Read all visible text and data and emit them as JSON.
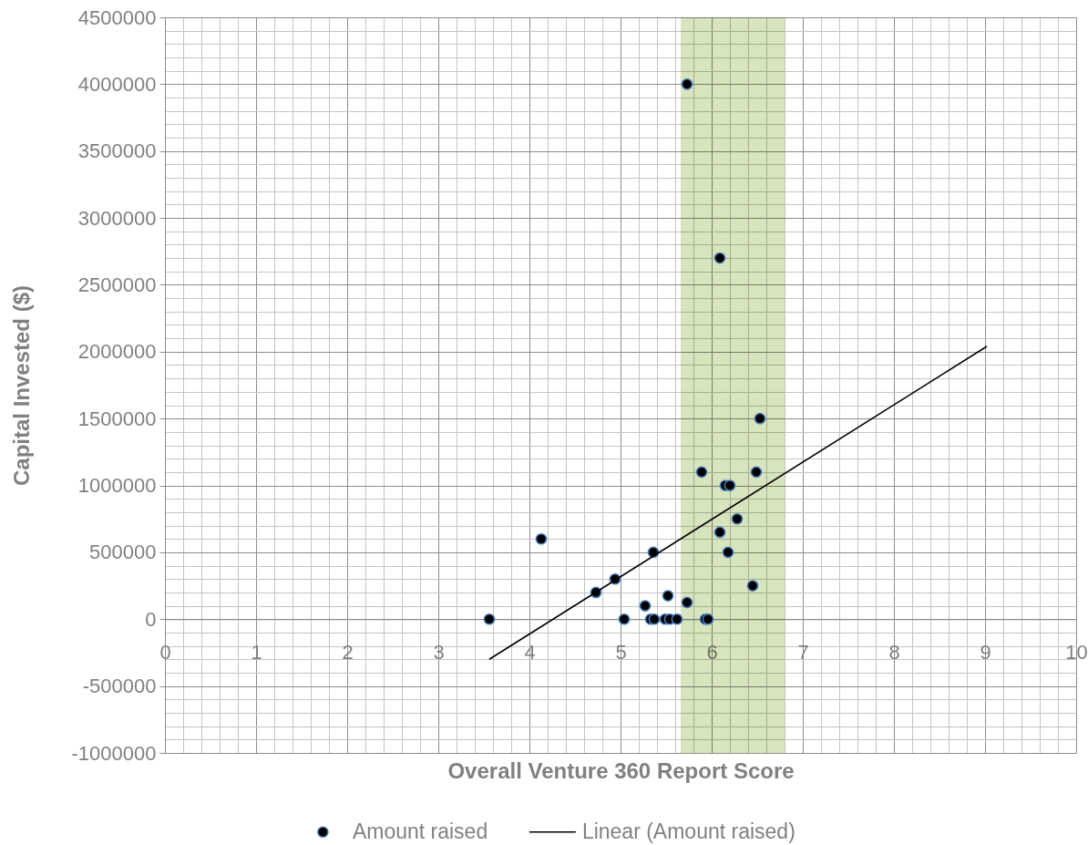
{
  "chart_data": {
    "type": "scatter",
    "xlabel": "Overall Venture 360 Report Score",
    "ylabel": "Capital Invested ($)",
    "xlim": [
      0,
      10
    ],
    "ylim": [
      -1000000,
      4500000
    ],
    "xticks": [
      0,
      {
        "value": 0.2,
        "label": null
      },
      {
        "value": 0.4,
        "label": null
      },
      {
        "value": 0.6,
        "label": null
      },
      {
        "value": 0.8,
        "label": null
      },
      1,
      {
        "value": 1.2,
        "label": null
      },
      {
        "value": 1.4,
        "label": null
      },
      {
        "value": 1.6,
        "label": null
      },
      {
        "value": 1.8,
        "label": null
      },
      2,
      {
        "value": 2.2,
        "label": null
      },
      {
        "value": 2.4,
        "label": null
      },
      {
        "value": 2.6,
        "label": null
      },
      {
        "value": 2.8,
        "label": null
      },
      3,
      {
        "value": 3.2,
        "label": null
      },
      {
        "value": 3.4,
        "label": null
      },
      {
        "value": 3.6,
        "label": null
      },
      {
        "value": 3.8,
        "label": null
      },
      4,
      {
        "value": 4.2,
        "label": null
      },
      {
        "value": 4.4,
        "label": null
      },
      {
        "value": 4.6,
        "label": null
      },
      {
        "value": 4.8,
        "label": null
      },
      5,
      {
        "value": 5.2,
        "label": null
      },
      {
        "value": 5.4,
        "label": null
      },
      {
        "value": 5.6,
        "label": null
      },
      {
        "value": 5.8,
        "label": null
      },
      6,
      {
        "value": 6.2,
        "label": null
      },
      {
        "value": 6.4,
        "label": null
      },
      {
        "value": 6.6,
        "label": null
      },
      {
        "value": 6.8,
        "label": null
      },
      7,
      {
        "value": 7.2,
        "label": null
      },
      {
        "value": 7.4,
        "label": null
      },
      {
        "value": 7.6,
        "label": null
      },
      {
        "value": 7.8,
        "label": null
      },
      8,
      {
        "value": 8.2,
        "label": null
      },
      {
        "value": 8.4,
        "label": null
      },
      {
        "value": 8.6,
        "label": null
      },
      {
        "value": 8.8,
        "label": null
      },
      9,
      {
        "value": 9.2,
        "label": null
      },
      {
        "value": 9.4,
        "label": null
      },
      {
        "value": 9.6,
        "label": null
      },
      {
        "value": 9.8,
        "label": null
      },
      10
    ],
    "yticks": [
      -1000000,
      {
        "value": -900000,
        "label": null
      },
      {
        "value": -800000,
        "label": null
      },
      {
        "value": -700000,
        "label": null
      },
      {
        "value": -600000,
        "label": null
      },
      -500000,
      {
        "value": -400000,
        "label": null
      },
      {
        "value": -300000,
        "label": null
      },
      {
        "value": -200000,
        "label": null
      },
      {
        "value": -100000,
        "label": null
      },
      0,
      {
        "value": 100000,
        "label": null
      },
      {
        "value": 200000,
        "label": null
      },
      {
        "value": 300000,
        "label": null
      },
      {
        "value": 400000,
        "label": null
      },
      500000,
      {
        "value": 600000,
        "label": null
      },
      {
        "value": 700000,
        "label": null
      },
      {
        "value": 800000,
        "label": null
      },
      {
        "value": 900000,
        "label": null
      },
      1000000,
      {
        "value": 1100000,
        "label": null
      },
      {
        "value": 1200000,
        "label": null
      },
      {
        "value": 1300000,
        "label": null
      },
      {
        "value": 1400000,
        "label": null
      },
      1500000,
      {
        "value": 1600000,
        "label": null
      },
      {
        "value": 1700000,
        "label": null
      },
      {
        "value": 1800000,
        "label": null
      },
      {
        "value": 1900000,
        "label": null
      },
      2000000,
      {
        "value": 2100000,
        "label": null
      },
      {
        "value": 2200000,
        "label": null
      },
      {
        "value": 2300000,
        "label": null
      },
      {
        "value": 2400000,
        "label": null
      },
      2500000,
      {
        "value": 2600000,
        "label": null
      },
      {
        "value": 2700000,
        "label": null
      },
      {
        "value": 2800000,
        "label": null
      },
      {
        "value": 2900000,
        "label": null
      },
      3000000,
      {
        "value": 3100000,
        "label": null
      },
      {
        "value": 3200000,
        "label": null
      },
      {
        "value": 3300000,
        "label": null
      },
      {
        "value": 3400000,
        "label": null
      },
      3500000,
      {
        "value": 3600000,
        "label": null
      },
      {
        "value": 3700000,
        "label": null
      },
      {
        "value": 3800000,
        "label": null
      },
      {
        "value": 3900000,
        "label": null
      },
      4000000,
      {
        "value": 4100000,
        "label": null
      },
      {
        "value": 4200000,
        "label": null
      },
      {
        "value": 4300000,
        "label": null
      },
      {
        "value": 4400000,
        "label": null
      },
      4500000
    ],
    "grid": true,
    "legend": "bottom",
    "bands": [
      {
        "axis": "x",
        "from": 5.66,
        "to": 6.8,
        "color": "#d7e4bd"
      }
    ],
    "series": [
      {
        "name": "Amount raised",
        "marker": "circle",
        "color": "#000000",
        "x": [
          3.56,
          4.13,
          4.73,
          4.94,
          5.04,
          5.27,
          5.33,
          5.36,
          5.37,
          5.49,
          5.52,
          5.54,
          5.62,
          5.73,
          5.73,
          5.89,
          5.93,
          5.96,
          6.09,
          6.09,
          6.15,
          6.18,
          6.2,
          6.28,
          6.45,
          6.49,
          6.53
        ],
        "values": [
          0,
          600000,
          200000,
          300000,
          0,
          100000,
          0,
          500000,
          0,
          0,
          175000,
          0,
          0,
          125000,
          4000000,
          1100000,
          0,
          0,
          650000,
          2700000,
          1000000,
          500000,
          1000000,
          750000,
          250000,
          1100000,
          1500000
        ]
      },
      {
        "name": "Linear (Amount raised)",
        "type": "line",
        "color": "#000000",
        "x": [
          3.56,
          9.02
        ],
        "values": [
          -300000,
          2040000
        ]
      }
    ]
  }
}
